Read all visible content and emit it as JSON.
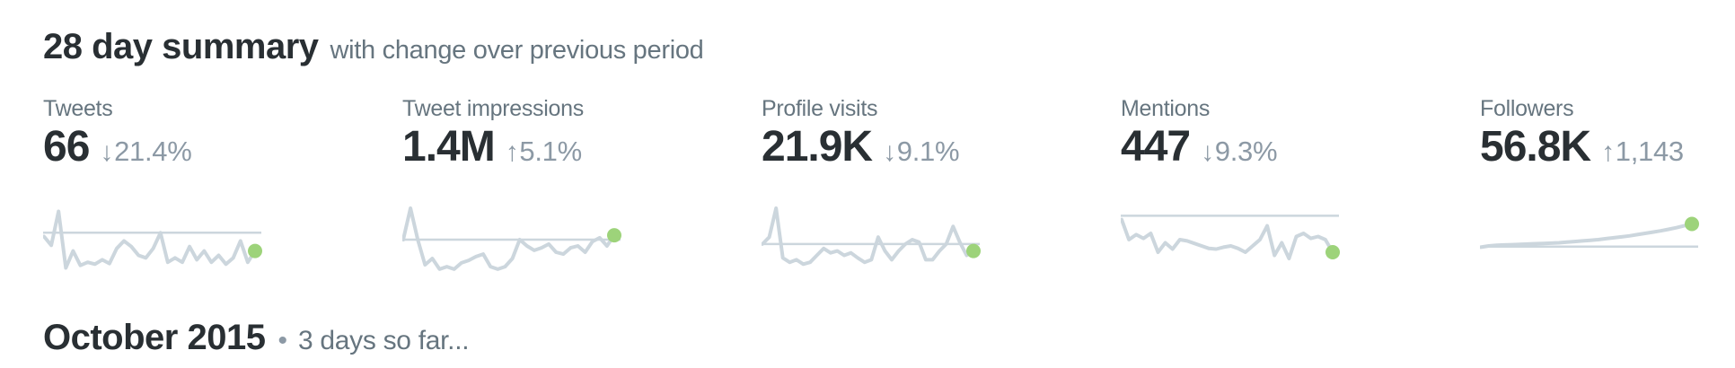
{
  "header": {
    "title": "28 day summary",
    "subtitle": "with change over previous period"
  },
  "colors": {
    "background": "#ffffff",
    "text_dark": "#292f33",
    "text_muted": "#66757f",
    "text_light": "#8c99a5",
    "spark_line": "#ccd6dd",
    "dot_green": "#9dd37a"
  },
  "metrics": [
    {
      "id": "tweets",
      "label": "Tweets",
      "value": "66",
      "direction": "down",
      "arrow": "↓",
      "change": "21.4%",
      "spark": {
        "type": "line",
        "baseline": 61,
        "values": [
          55,
          41,
          95,
          5,
          32,
          9,
          14,
          11,
          18,
          12,
          36,
          48,
          39,
          25,
          21,
          36,
          61,
          14,
          21,
          14,
          39,
          18,
          32,
          14,
          25,
          11,
          21,
          48,
          14,
          32
        ]
      }
    },
    {
      "id": "tweet-impressions",
      "label": "Tweet impressions",
      "value": "1.4M",
      "direction": "up",
      "arrow": "↑",
      "change": "5.1%",
      "spark": {
        "type": "line",
        "baseline": 50,
        "values": [
          50,
          100,
          50,
          10,
          20,
          3,
          7,
          3,
          13,
          17,
          23,
          27,
          7,
          3,
          7,
          20,
          50,
          40,
          33,
          37,
          43,
          30,
          27,
          37,
          40,
          30,
          47,
          53,
          40,
          57
        ]
      }
    },
    {
      "id": "profile-visits",
      "label": "Profile visits",
      "value": "21.9K",
      "direction": "down",
      "arrow": "↓",
      "change": "9.1%",
      "spark": {
        "type": "line",
        "baseline": 43,
        "values": [
          43,
          54,
          100,
          21,
          14,
          18,
          11,
          14,
          25,
          36,
          29,
          32,
          25,
          29,
          21,
          14,
          18,
          54,
          32,
          18,
          32,
          43,
          50,
          46,
          18,
          18,
          32,
          43,
          71,
          46,
          25,
          32
        ]
      }
    },
    {
      "id": "mentions",
      "label": "Mentions",
      "value": "447",
      "direction": "down",
      "arrow": "↓",
      "change": "9.3%",
      "spark": {
        "type": "line",
        "baseline": 88,
        "values": [
          82,
          50,
          58,
          52,
          60,
          30,
          45,
          35,
          50,
          48,
          44,
          40,
          36,
          35,
          38,
          40,
          36,
          30,
          40,
          50,
          72,
          25,
          45,
          20,
          55,
          60,
          52,
          55,
          50,
          30
        ]
      }
    },
    {
      "id": "followers",
      "label": "Followers",
      "value": "56.8K",
      "direction": "up",
      "arrow": "↑",
      "change": "1,143",
      "spark": {
        "type": "line",
        "baseline": 39,
        "values": [
          38,
          40,
          41,
          41.5,
          42,
          42.5,
          43,
          43.5,
          44,
          44.5,
          45,
          46,
          47,
          48,
          49,
          50,
          51.5,
          53,
          54.5,
          56,
          58,
          60,
          62,
          64,
          66.5,
          69,
          72,
          75
        ]
      }
    }
  ],
  "period": {
    "title": "October 2015",
    "separator": "•",
    "note": "3 days so far..."
  }
}
